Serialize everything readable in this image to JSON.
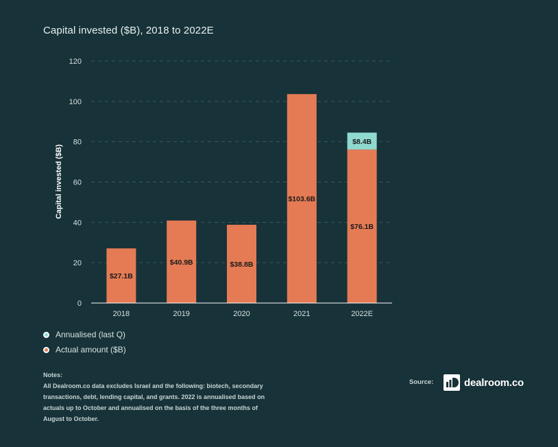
{
  "chart_data": {
    "type": "bar",
    "stacked": true,
    "title": "Capital invested ($B), 2018 to 2022E",
    "xlabel": "",
    "ylabel": "Capital invested ($B)",
    "ylim": [
      0,
      120
    ],
    "yticks": [
      0,
      20,
      40,
      60,
      80,
      100,
      120
    ],
    "ytick_labels": [
      "0",
      "20",
      "40",
      "60",
      "80",
      "100",
      "120"
    ],
    "grid": true,
    "legend_position": "bottom-left",
    "categories": [
      "2018",
      "2019",
      "2020",
      "2021",
      "2022E"
    ],
    "series": [
      {
        "name": "Actual amount ($B)",
        "color": "#e57b55",
        "values": [
          27.1,
          40.9,
          38.8,
          103.6,
          76.1
        ],
        "labels": [
          "$27.1B",
          "$40.9B",
          "$38.8B",
          "$103.6B",
          "$76.1B"
        ]
      },
      {
        "name": "Annualised (last Q)",
        "color": "#8fd9cf",
        "values": [
          0,
          0,
          0,
          0,
          8.4
        ],
        "labels": [
          "",
          "",
          "",
          "",
          "$8.4B"
        ]
      }
    ]
  },
  "legend": {
    "items": [
      {
        "label": "Annualised (last Q)",
        "color": "#8fd9cf"
      },
      {
        "label": "Actual amount ($B)",
        "color": "#e57b55"
      }
    ]
  },
  "notes": {
    "heading": "Notes:",
    "text": "All Dealroom.co data excludes Israel and the following: biotech, secondary transactions, debt, lending capital, and grants. 2022 is annualised based on actuals up to October and annualised on the basis of the three months of August to October."
  },
  "source": {
    "label": "Source:",
    "brand": "dealroom.co"
  },
  "colors": {
    "background": "#173238",
    "grid": "#3a5a5e",
    "axis": "#ffffff",
    "bar_label": "#1a1a1a"
  }
}
